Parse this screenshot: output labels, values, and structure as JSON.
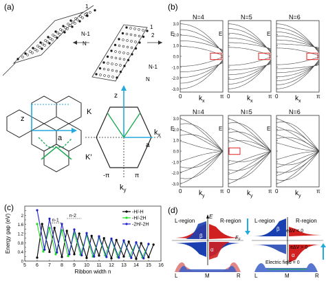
{
  "panel_a": {
    "label": "(a)",
    "ribbon_left_labels": [
      "1",
      "2",
      "N-1",
      "N"
    ],
    "ribbon_right_labels": [
      "1",
      "2",
      "N-1",
      "N"
    ],
    "real_space": {
      "z": "z",
      "a": "a"
    },
    "bz": {
      "K": "K",
      "Kp": "K′",
      "kx": "k",
      "kx_sub": "x",
      "ky": "k",
      "ky_sub": "y",
      "zstar": "z",
      "astar": "a",
      "pi": "π",
      "neg_pi": "-π"
    }
  },
  "panel_b": {
    "label": "(b)",
    "row_top": {
      "titles": [
        "N=4",
        "N=5",
        "N=6"
      ],
      "xlabel": "k",
      "xsub": "x"
    },
    "row_bottom": {
      "titles": [
        "N=4",
        "N=5",
        "N=6"
      ],
      "xlabel": "k",
      "xsub": "y"
    },
    "ylabel": "E",
    "yticks": [
      "3.0",
      "2.0",
      "1.0",
      "0.0",
      "-1.0",
      "-2.0",
      "-3.0"
    ],
    "xticks": [
      "0",
      "π"
    ],
    "highlight_color": "#e02020"
  },
  "panel_c": {
    "label": "(c)",
    "chart_data": {
      "type": "line",
      "xlabel": "Ribbon width n",
      "ylabel": "Energy gap (eV)",
      "xlim": [
        5,
        16
      ],
      "ylim": [
        0,
        2.4
      ],
      "xticks": [
        5,
        6,
        7,
        8,
        9,
        10,
        11,
        12,
        13,
        14,
        15,
        16
      ],
      "yticks": [
        0,
        0.2,
        0.4,
        0.6,
        0.8,
        1,
        1.2,
        1.4,
        1.6,
        1.8,
        2,
        2.2
      ],
      "ytick_labels": [
        "0",
        "0.2",
        "0.4",
        "0.6",
        "0.8",
        "1",
        "1.2",
        "1.4",
        "1.6",
        "1.8",
        "2",
        "2.2"
      ],
      "legend": "top-right",
      "annotations": [
        "n-1",
        "n-2"
      ],
      "series": [
        {
          "name": "-H/-H",
          "color": "#000000",
          "x": [
            6,
            6.4,
            7,
            7.4,
            8,
            8.4,
            9,
            9.4,
            10,
            10.4,
            11,
            11.4,
            12,
            12.4,
            13,
            13.4,
            14,
            14.4,
            15,
            15.4
          ],
          "y": [
            0.15,
            1.62,
            0.4,
            1.45,
            0.18,
            1.32,
            0.3,
            1.2,
            0.14,
            1.1,
            0.24,
            1.0,
            0.12,
            0.92,
            0.2,
            0.85,
            0.1,
            0.78,
            0.17,
            0.72
          ]
        },
        {
          "name": "-H/-2H",
          "color": "#22dd22",
          "x": [
            6,
            6.5,
            7,
            7.5,
            8,
            8.5,
            9,
            9.5,
            10,
            10.5,
            11,
            11.5,
            12,
            12.5,
            13,
            13.5,
            14,
            14.5,
            15
          ],
          "y": [
            1.62,
            0.42,
            1.45,
            0.3,
            1.34,
            0.22,
            1.22,
            0.28,
            1.12,
            0.2,
            1.02,
            0.25,
            0.94,
            0.18,
            0.86,
            0.22,
            0.8,
            0.16,
            0.73
          ]
        },
        {
          "name": "-2H/-2H",
          "color": "#2222cc",
          "x": [
            6,
            6.6,
            7,
            7.6,
            8,
            8.6,
            9,
            9.6,
            10,
            10.6,
            11,
            11.6,
            12,
            12.6,
            13,
            13.6,
            14,
            14.6,
            15
          ],
          "y": [
            2.22,
            0.5,
            1.85,
            0.38,
            1.62,
            0.3,
            1.38,
            0.25,
            1.22,
            0.2,
            1.08,
            0.18,
            0.98,
            0.15,
            0.9,
            0.14,
            0.82,
            0.12,
            0.75
          ]
        }
      ]
    }
  },
  "panel_d": {
    "label": "(d)",
    "left": {
      "l_region": "L-region",
      "r_region": "R-region",
      "E": "E",
      "EF": "E",
      "EF_sub": "F",
      "alpha": "α",
      "beta": "β",
      "bottom": [
        "L",
        "M",
        "R"
      ]
    },
    "right": {
      "l_region": "L-region",
      "r_region": "R-region",
      "dv_neg": "eΔV < 0",
      "dv_pos": "eΔV > 0",
      "efield": "Electric field = 0",
      "alpha": "α",
      "beta": "β",
      "bottom": [
        "L",
        "M",
        "R"
      ]
    },
    "colors": {
      "red": "#d02020",
      "blue": "#1a3fb0",
      "cyan_arrow": "#22aadd"
    }
  }
}
